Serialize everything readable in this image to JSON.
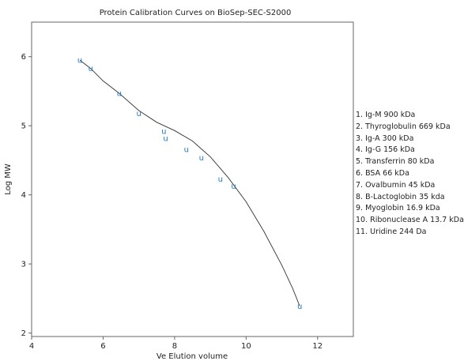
{
  "chart_data": {
    "type": "scatter",
    "title": "Protein Calibration Curves on BioSep-SEC-S2000",
    "xlabel": "Ve Elution volume",
    "ylabel": "Log MW",
    "xlim": [
      4,
      13
    ],
    "ylim": [
      1.95,
      6.5
    ],
    "x_ticks": [
      "4",
      "6",
      "8",
      "10",
      "12"
    ],
    "y_ticks": [
      "2",
      "3",
      "4",
      "5",
      "6"
    ],
    "marker": "u",
    "marker_color": "#1f77c4",
    "curve_color": "#333333",
    "grid": false,
    "legend_position": "right",
    "points": [
      {
        "x": 5.35,
        "y": 5.95
      },
      {
        "x": 5.65,
        "y": 5.83
      },
      {
        "x": 6.45,
        "y": 5.47
      },
      {
        "x": 7.0,
        "y": 5.18
      },
      {
        "x": 7.7,
        "y": 4.92
      },
      {
        "x": 7.75,
        "y": 4.82
      },
      {
        "x": 8.33,
        "y": 4.66
      },
      {
        "x": 8.75,
        "y": 4.54
      },
      {
        "x": 9.28,
        "y": 4.23
      },
      {
        "x": 9.65,
        "y": 4.13
      },
      {
        "x": 11.5,
        "y": 2.39
      }
    ],
    "curve": [
      [
        5.35,
        5.95
      ],
      [
        5.65,
        5.83
      ],
      [
        6.0,
        5.65
      ],
      [
        6.45,
        5.47
      ],
      [
        7.0,
        5.22
      ],
      [
        7.5,
        5.05
      ],
      [
        8.0,
        4.93
      ],
      [
        8.5,
        4.78
      ],
      [
        9.0,
        4.55
      ],
      [
        9.5,
        4.25
      ],
      [
        10.0,
        3.9
      ],
      [
        10.5,
        3.47
      ],
      [
        11.0,
        2.98
      ],
      [
        11.3,
        2.65
      ],
      [
        11.5,
        2.39
      ]
    ]
  },
  "legend": {
    "items": [
      "1. Ig-M 900 kDa",
      "2. Thyroglobulin 669 kDa",
      "3. Ig-A 300 kDa",
      "4. Ig-G 156 kDa",
      "5. Transferrin 80 kDa",
      "6. BSA 66 kDa",
      "7. Ovalbumin 45 kDa",
      "8. B-Lactoglobin 35 kda",
      "9. Myoglobin 16.9 kDa",
      "10. Ribonuclease A 13.7 kDa",
      "11. Uridine 244 Da"
    ]
  }
}
